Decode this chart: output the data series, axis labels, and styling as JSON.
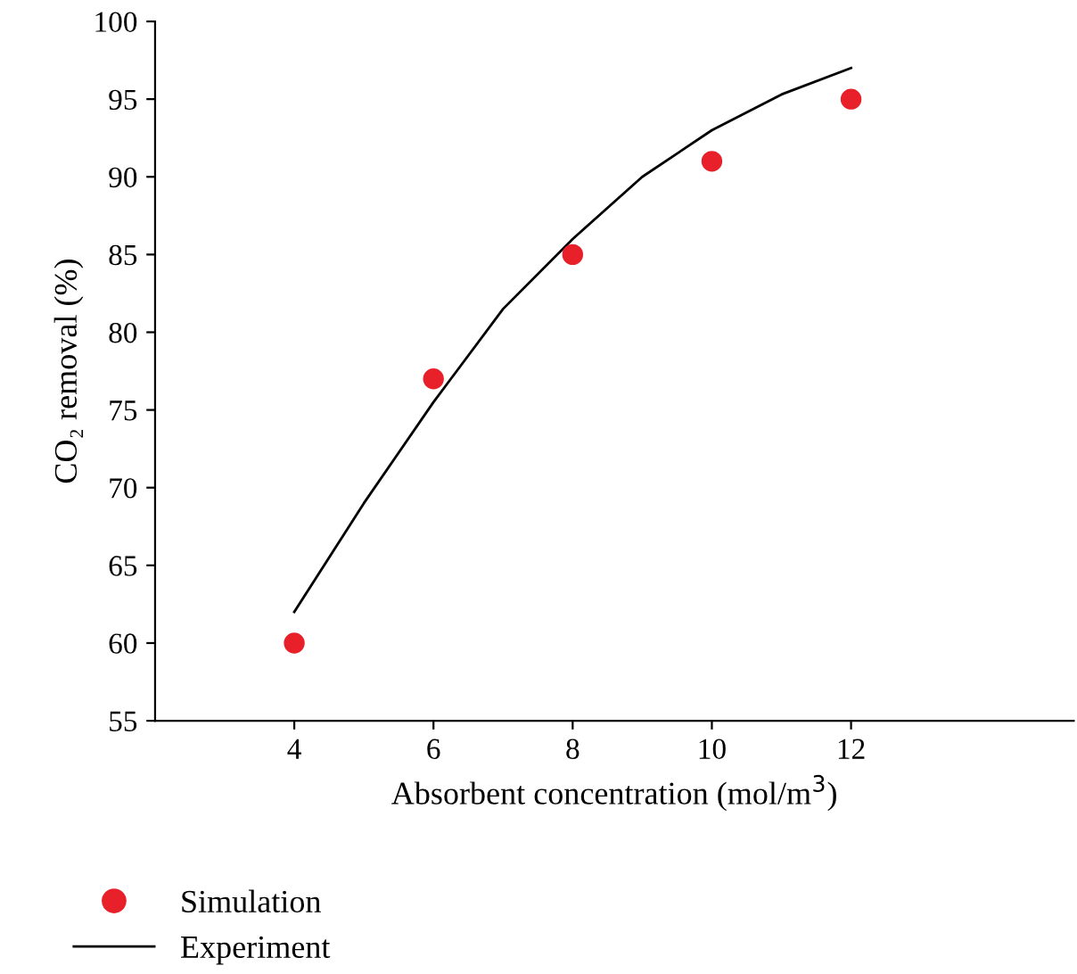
{
  "chart_data": {
    "type": "scatter",
    "xlabel": "Absorbent concentration (mol/m$^{3}$)",
    "ylabel": "CO₂ removal (%)",
    "xlim": [
      2,
      15.2
    ],
    "xticks": [
      4,
      6,
      8,
      10,
      12
    ],
    "ylim": [
      55,
      100
    ],
    "yticks": [
      55,
      60,
      65,
      70,
      75,
      80,
      85,
      90,
      95,
      100
    ],
    "series": [
      {
        "name": "Simulation",
        "color": "#e8202a",
        "marker": "circle",
        "x": [
          4,
          6,
          8,
          10,
          12
        ],
        "values": [
          60,
          77,
          85,
          91,
          95
        ]
      },
      {
        "name": "Experiment",
        "type": "line",
        "color": "#000000",
        "marker": "none",
        "x": [
          4,
          5,
          6,
          7,
          8,
          9,
          10,
          11,
          12
        ],
        "values": [
          62,
          69,
          75.5,
          81.5,
          86,
          90,
          93,
          95.3,
          97
        ]
      }
    ],
    "legend": "bottom",
    "grid": false
  }
}
